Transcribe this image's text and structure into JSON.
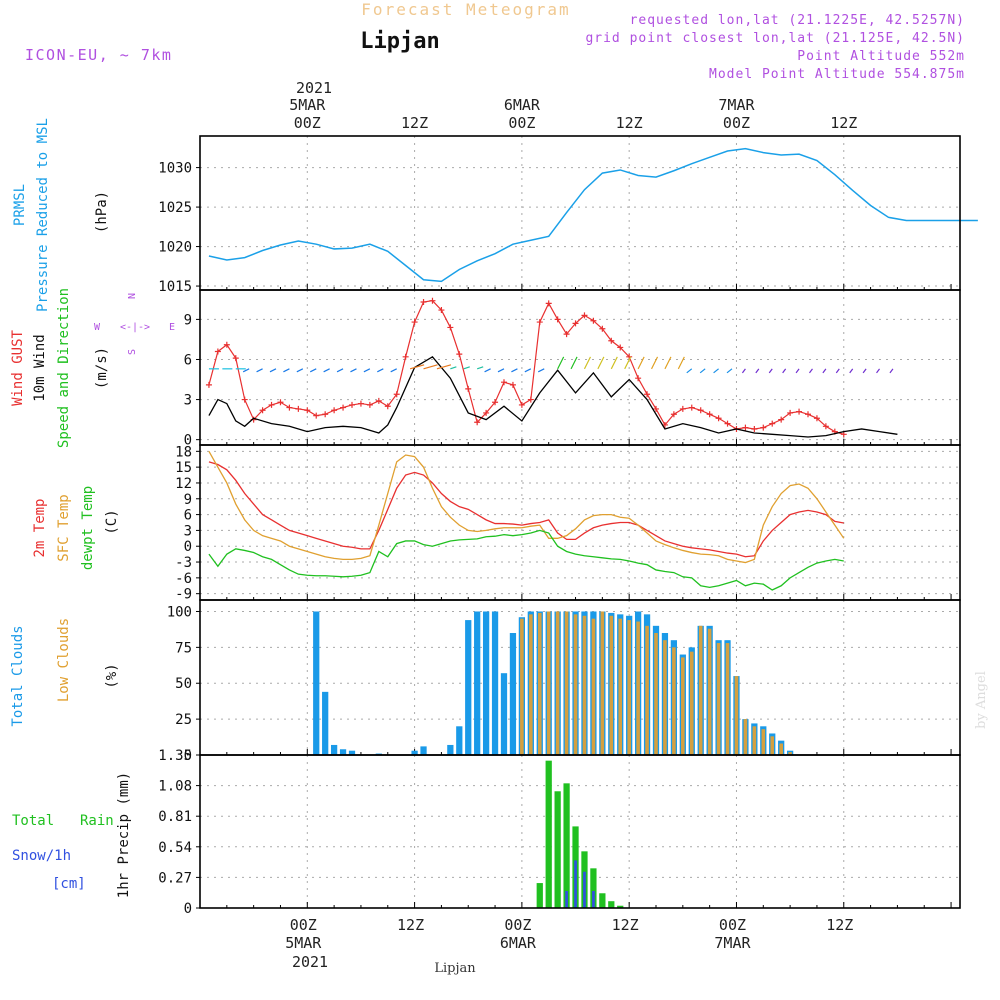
{
  "header": {
    "title": "Forecast Meteogram",
    "location": "Lipjan",
    "model": "ICON-EU, ~ 7km",
    "requested": "requested lon,lat (21.1225E, 42.5257N)",
    "gridpoint": "grid point closest lon,lat (21.125E, 42.5N)",
    "point_alt": "Point Altitude 552m",
    "model_alt": "Model Point Altitude 554.875m"
  },
  "footer": {
    "location": "Lipjan",
    "credit": "by Angel"
  },
  "time_axis": {
    "year": "2021",
    "days": [
      {
        "label": "5MAR",
        "time": "00Z",
        "hour": 0
      },
      {
        "label": "6MAR",
        "time": "00Z",
        "hour": 24
      },
      {
        "label": "7MAR",
        "time": "00Z",
        "hour": 48
      }
    ],
    "noon_ticks": [
      {
        "label": "12Z",
        "hour": 12
      },
      {
        "label": "12Z",
        "hour": 36
      },
      {
        "label": "12Z",
        "hour": 60
      }
    ]
  },
  "panel_labels": {
    "pressure": {
      "l1": "PRMSL",
      "l2": "Pressure Reduced to MSL",
      "unit": "(hPa)"
    },
    "wind": {
      "l1": "Wind GUST",
      "l2": "10m Wind",
      "l3": "Speed and Direction",
      "unit": "(m/s)",
      "compass_w": "W",
      "compass_e": "E",
      "compass_n": "N",
      "compass_s": "S",
      "compass_arrows": "<-|->"
    },
    "temp": {
      "l1": "2m Temp",
      "l2": "SFC Temp",
      "l3": "dewpt Temp",
      "unit": "(C)"
    },
    "clouds": {
      "l1": "Total Clouds",
      "l2": "Low Clouds",
      "unit": "(%)"
    },
    "precip": {
      "l1": "Total",
      "l1b": "Rain",
      "l2": "Snow/1h",
      "l3": "[cm]",
      "unit": "1hr Precip (mm)"
    }
  },
  "colors": {
    "pressure": "#1aa0e8",
    "gust": "#e83030",
    "wind": "#000000",
    "temp2m": "#e83030",
    "sfctemp": "#e0a030",
    "dewpt": "#20c020",
    "total_clouds": "#1a9ae8",
    "low_clouds": "#d4a040",
    "rain": "#20c020",
    "snow": "#3050e0",
    "title": "#f0c890",
    "purple": "#b050e0"
  },
  "chart_data": [
    {
      "type": "line",
      "title": "PRMSL Pressure Reduced to MSL",
      "ylabel": "(hPa)",
      "ylim": [
        1014.5,
        1034
      ],
      "yticks": [
        1015,
        1020,
        1025,
        1030
      ],
      "x_hours": [
        -11,
        -9,
        -7,
        -5,
        -3,
        -1,
        1,
        3,
        5,
        7,
        9,
        11,
        13,
        15,
        17,
        19,
        21,
        23,
        25,
        27,
        29,
        31,
        33,
        35,
        37,
        39,
        41,
        43,
        45,
        47,
        49,
        51,
        53,
        55,
        57,
        59,
        61,
        63,
        65,
        67,
        69,
        71,
        73,
        75
      ],
      "series": [
        {
          "values": [
            1018.8,
            1018.3,
            1018.6,
            1019.5,
            1020.2,
            1020.7,
            1020.3,
            1019.7,
            1019.8,
            1020.3,
            1019.4,
            1017.6,
            1015.8,
            1015.6,
            1017.1,
            1018.2,
            1019.1,
            1020.3,
            1020.8,
            1021.3,
            1024.3,
            1027.2,
            1029.3,
            1029.7,
            1029.0,
            1028.8,
            1029.6,
            1030.5,
            1031.3,
            1032.1,
            1032.4,
            1031.9,
            1031.6,
            1031.7,
            1030.9,
            1029.1,
            1027.1,
            1025.2,
            1023.7,
            1023.3,
            1023.3,
            1023.3,
            1023.3,
            1023.3
          ]
        }
      ]
    },
    {
      "type": "line",
      "title": "Wind GUST / 10m Wind Speed and Direction",
      "ylabel": "(m/s)",
      "ylim": [
        -0.4,
        11.2
      ],
      "yticks": [
        0,
        3,
        6,
        9
      ],
      "gust_x": [
        -11,
        -10,
        -9,
        -8,
        -7,
        -6,
        -5,
        -4,
        -3,
        -2,
        -1,
        0,
        1,
        2,
        3,
        4,
        5,
        6,
        7,
        8,
        9,
        10,
        11,
        12,
        13,
        14,
        15,
        16,
        17,
        18,
        19,
        20,
        21,
        22,
        23,
        24,
        25,
        26,
        27,
        28,
        29,
        30,
        31,
        32,
        33,
        34,
        35,
        36,
        37,
        38,
        39,
        40,
        41,
        42,
        43,
        44,
        45,
        46,
        47,
        48,
        49,
        50,
        51,
        52,
        53,
        54,
        55,
        56,
        57,
        58,
        59,
        60,
        61,
        62,
        63,
        64,
        65,
        66
      ],
      "gust": [
        4.1,
        6.6,
        7.1,
        6.1,
        3.0,
        1.5,
        2.2,
        2.6,
        2.8,
        2.4,
        2.3,
        2.2,
        1.8,
        1.9,
        2.2,
        2.4,
        2.6,
        2.7,
        2.6,
        2.9,
        2.5,
        3.4,
        6.2,
        8.8,
        10.3,
        10.4,
        9.7,
        8.4,
        6.4,
        3.8,
        1.3,
        2.0,
        2.8,
        4.3,
        4.1,
        2.6,
        3.0,
        8.8,
        10.2,
        9.0,
        7.9,
        8.7,
        9.3,
        8.9,
        8.3,
        7.4,
        6.9,
        6.2,
        4.6,
        3.4,
        2.3,
        1.1,
        1.9,
        2.3,
        2.4,
        2.2,
        1.9,
        1.6,
        1.2,
        0.8,
        0.9,
        0.8,
        0.9,
        1.2,
        1.5,
        2.0,
        2.1,
        1.9,
        1.6,
        1.0,
        0.6,
        0.4
      ],
      "wind_x": [
        -11,
        -10,
        -9,
        -8,
        -7,
        -6,
        -4,
        -2,
        0,
        2,
        4,
        6,
        8,
        9,
        10,
        12,
        14,
        16,
        18,
        20,
        22,
        24,
        26,
        28,
        30,
        32,
        34,
        36,
        38,
        40,
        42,
        44,
        46,
        48,
        50,
        52,
        54,
        56,
        58,
        60,
        62,
        64,
        66
      ],
      "wind": [
        1.8,
        3.0,
        2.7,
        1.4,
        1.0,
        1.6,
        1.2,
        1.0,
        0.6,
        0.9,
        1.0,
        0.9,
        0.5,
        1.1,
        2.4,
        5.4,
        6.2,
        4.6,
        2.0,
        1.5,
        2.5,
        1.4,
        3.5,
        5.2,
        3.5,
        5.0,
        3.2,
        4.5,
        3.0,
        0.8,
        1.2,
        0.9,
        0.5,
        0.8,
        0.5,
        0.4,
        0.3,
        0.2,
        0.3,
        0.6,
        0.8,
        0.6,
        0.4
      ]
    },
    {
      "type": "line",
      "title": "2m Temp / SFC Temp / dewpt Temp",
      "ylabel": "(C)",
      "ylim": [
        -10.2,
        19.2
      ],
      "yticks": [
        -9,
        -6,
        -3,
        0,
        3,
        6,
        9,
        12,
        15,
        18
      ],
      "x_hours": [
        -11,
        -10,
        -9,
        -8,
        -7,
        -6,
        -5,
        -4,
        -3,
        -2,
        -1,
        0,
        1,
        2,
        3,
        4,
        5,
        6,
        7,
        8,
        9,
        10,
        11,
        12,
        13,
        14,
        15,
        16,
        17,
        18,
        19,
        20,
        21,
        22,
        23,
        24,
        25,
        26,
        27,
        28,
        29,
        30,
        31,
        32,
        33,
        34,
        35,
        36,
        37,
        38,
        39,
        40,
        41,
        42,
        43,
        44,
        45,
        46,
        47,
        48,
        49,
        50,
        51,
        52,
        53,
        54,
        55,
        56,
        57,
        58,
        59,
        60,
        61,
        62,
        63,
        64,
        65,
        66
      ],
      "series": [
        {
          "name": "2m Temp",
          "values": [
            16,
            15.5,
            14.5,
            12.5,
            10,
            8,
            6,
            5,
            4,
            3,
            2.5,
            2,
            1.5,
            1,
            0.5,
            0,
            -0.2,
            -0.5,
            -0.5,
            3,
            7,
            11,
            13.5,
            14,
            13.5,
            12,
            10,
            8.5,
            7.5,
            7,
            6,
            5,
            4.3,
            4.3,
            4.2,
            4,
            4.3,
            4.5,
            5,
            2.5,
            1.3,
            1.3,
            2.5,
            3.5,
            4,
            4.3,
            4.5,
            4.5,
            4,
            3,
            2,
            1,
            0.5,
            0,
            -0.3,
            -0.5,
            -0.7,
            -1,
            -1.3,
            -1.5,
            -2,
            -1.8,
            1,
            3,
            4.5,
            6,
            6.5,
            6.8,
            6.5,
            6,
            4.7,
            4.4
          ]
        },
        {
          "name": "SFC Temp",
          "values": [
            18,
            15,
            12,
            8,
            5,
            3,
            2,
            1.5,
            1,
            0,
            -0.5,
            -1,
            -1.5,
            -2,
            -2.3,
            -2.5,
            -2.5,
            -2.3,
            -1.8,
            4,
            10,
            16,
            17.3,
            17,
            15,
            11,
            7.5,
            5.5,
            4,
            3,
            2.8,
            3,
            3.3,
            3.5,
            3.5,
            3.5,
            3.8,
            4,
            1.5,
            1.5,
            2,
            3.3,
            5,
            5.8,
            6,
            6,
            5.5,
            5.3,
            4,
            2.5,
            1,
            0.3,
            -0.3,
            -0.8,
            -1.2,
            -1.5,
            -1.6,
            -1.8,
            -2.5,
            -2.8,
            -3.1,
            -2.5,
            4,
            7.5,
            10,
            11.5,
            11.8,
            11,
            9,
            6.5,
            4,
            1.5
          ]
        },
        {
          "name": "dewpt Temp",
          "values": [
            -1.5,
            -3.8,
            -1.5,
            -0.5,
            -0.8,
            -1.2,
            -2,
            -2.5,
            -3.5,
            -4.5,
            -5.3,
            -5.5,
            -5.6,
            -5.6,
            -5.7,
            -5.8,
            -5.7,
            -5.5,
            -5,
            -1,
            -2,
            0.5,
            1,
            1,
            0.3,
            0,
            0.5,
            1,
            1.2,
            1.3,
            1.4,
            1.8,
            1.9,
            2.2,
            2,
            2.2,
            2.5,
            3.0,
            2.5,
            0,
            -1,
            -1.5,
            -1.8,
            -2,
            -2.2,
            -2.4,
            -2.5,
            -2.8,
            -3.2,
            -3.5,
            -4.5,
            -4.8,
            -5.0,
            -5.8,
            -6,
            -7.5,
            -7.8,
            -7.5,
            -7,
            -6.5,
            -7.5,
            -7,
            -7.2,
            -8.3,
            -7.5,
            -6,
            -5,
            -4,
            -3.2,
            -2.8,
            -2.5,
            -2.8
          ]
        }
      ]
    },
    {
      "type": "bar",
      "title": "Total Clouds / Low Clouds",
      "ylabel": "(%)",
      "ylim": [
        0,
        108
      ],
      "yticks": [
        0,
        25,
        50,
        75,
        100
      ],
      "x_hours": [
        1,
        2,
        3,
        4,
        5,
        6,
        7,
        8,
        9,
        10,
        11,
        12,
        13,
        14,
        15,
        16,
        17,
        18,
        19,
        20,
        21,
        22,
        23,
        24,
        25,
        26,
        27,
        28,
        29,
        30,
        31,
        32,
        33,
        34,
        35,
        36,
        37,
        38,
        39,
        40,
        41,
        42,
        43,
        44,
        45,
        46,
        47,
        48,
        49,
        50,
        51,
        52,
        53,
        54,
        55,
        56,
        57,
        58,
        59,
        60,
        61
      ],
      "series": [
        {
          "name": "Total Clouds",
          "values": [
            100,
            44,
            7,
            4,
            3,
            0,
            0,
            1,
            0,
            0,
            0,
            3,
            6,
            0,
            0,
            7,
            20,
            94,
            100,
            100,
            100,
            57,
            85,
            96,
            100,
            100,
            100,
            100,
            100,
            100,
            100,
            100,
            100,
            99,
            98,
            97,
            100,
            98,
            90,
            85,
            80,
            70,
            75,
            90,
            90,
            80,
            80,
            55,
            25,
            22,
            20,
            15,
            10,
            3,
            0,
            0,
            0,
            0,
            0,
            0,
            0
          ]
        },
        {
          "name": "Low Clouds",
          "values": [
            0,
            0,
            0,
            0,
            0,
            0,
            0,
            0,
            0,
            0,
            0,
            0,
            0,
            0,
            0,
            0,
            0,
            0,
            0,
            0,
            0,
            0,
            0,
            95,
            98,
            99,
            100,
            100,
            100,
            98,
            97,
            95,
            100,
            97,
            95,
            94,
            93,
            90,
            85,
            80,
            75,
            68,
            72,
            90,
            88,
            78,
            78,
            55,
            25,
            20,
            18,
            13,
            8,
            2,
            0,
            0,
            0,
            0,
            0,
            0,
            0
          ]
        }
      ]
    },
    {
      "type": "bar",
      "title": "1hr Precip",
      "ylabel": "1hr Precip (mm)",
      "ylim": [
        0,
        1.35
      ],
      "yticks": [
        0,
        0.27,
        0.54,
        0.81,
        1.08,
        1.35
      ],
      "x_hours": [
        26,
        27,
        28,
        29,
        30,
        31,
        32,
        33,
        34,
        35,
        36
      ],
      "series": [
        {
          "name": "Total Rain",
          "values": [
            0.22,
            1.3,
            1.03,
            1.1,
            0.72,
            0.5,
            0.35,
            0.13,
            0.06,
            0.02,
            0
          ]
        },
        {
          "name": "Snow/1h",
          "values": [
            0,
            0,
            0,
            0.15,
            0.42,
            0.32,
            0.15,
            0,
            0,
            0,
            0
          ]
        }
      ]
    }
  ]
}
